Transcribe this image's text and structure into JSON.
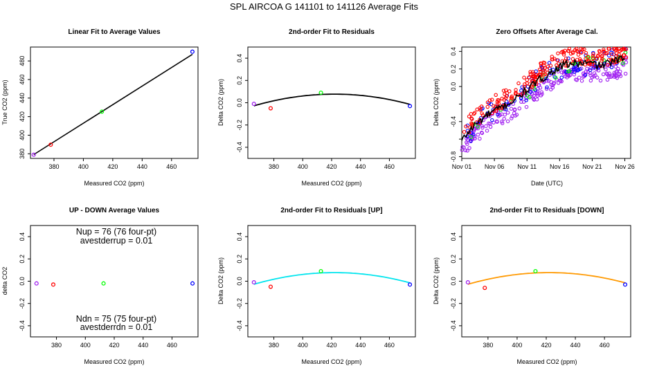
{
  "figure": {
    "title": "SPL   AIRCOA G   141101 to 141126   Average Fits"
  },
  "colors": {
    "purple": "#a020f0",
    "red": "#ff0000",
    "green": "#00ff00",
    "blue": "#0000ff",
    "black": "#000000",
    "cyan": "#00e5ee",
    "orange": "#ff9900"
  },
  "chart_data": [
    {
      "id": "p1",
      "type": "scatter",
      "title": "Linear Fit to Average Values",
      "xlabel": "Measured CO2 (ppm)",
      "ylabel": "True CO2 (ppm)",
      "xlim": [
        364,
        478
      ],
      "ylim": [
        375,
        495
      ],
      "xticks": [
        380,
        400,
        420,
        440,
        460
      ],
      "yticks": [
        380,
        400,
        420,
        440,
        460,
        480
      ],
      "points": [
        {
          "x": 366.2,
          "y": 379.0,
          "color": "purple"
        },
        {
          "x": 377.8,
          "y": 389.8,
          "color": "red"
        },
        {
          "x": 412.6,
          "y": 425.4,
          "color": "green"
        },
        {
          "x": 474.2,
          "y": 490.0,
          "color": "blue"
        }
      ],
      "fit": {
        "kind": "linear",
        "slope": 1.0,
        "intercept": 12.9,
        "range": [
          366.2,
          474.2
        ],
        "color": "black"
      }
    },
    {
      "id": "p2",
      "type": "scatter",
      "title": "2nd-order Fit to Residuals",
      "xlabel": "Measured CO2 (ppm)",
      "ylabel": "Delta CO2 (ppm)",
      "xlim": [
        362,
        478
      ],
      "ylim": [
        -0.5,
        0.5
      ],
      "xticks": [
        380,
        400,
        420,
        440,
        460
      ],
      "yticks": [
        -0.4,
        -0.2,
        0.0,
        0.2,
        0.4
      ],
      "points": [
        {
          "x": 366.2,
          "y": -0.01,
          "color": "purple"
        },
        {
          "x": 377.8,
          "y": -0.05,
          "color": "red"
        },
        {
          "x": 412.6,
          "y": 0.09,
          "color": "green"
        },
        {
          "x": 474.2,
          "y": -0.03,
          "color": "blue"
        }
      ],
      "fit": {
        "kind": "quadratic",
        "a": -3.37e-05,
        "h": 422,
        "k": 0.077,
        "range": [
          366.2,
          474.2
        ],
        "color": "black"
      }
    },
    {
      "id": "p3",
      "type": "scatter",
      "title": "Zero Offsets After Average Cal.",
      "xlabel": "Date (UTC)",
      "ylabel": "Delta CO2 (ppm)",
      "xlim": [
        0,
        25.9
      ],
      "ylim": [
        -0.82,
        0.45
      ],
      "xticks": [
        0,
        5,
        10,
        15,
        20,
        25
      ],
      "xticklabels": [
        "Nov 01",
        "Nov 06",
        "Nov 11",
        "Nov 16",
        "Nov 21",
        "Nov 26"
      ],
      "yticks": [
        -0.8,
        -0.6,
        -0.4,
        -0.2,
        0.0,
        0.2,
        0.4
      ],
      "yticklabels": [
        "-0.8",
        "",
        "-0.4",
        "",
        "0.0",
        "0.2",
        "0.4"
      ],
      "trend": {
        "days": [
          0,
          1,
          2,
          3,
          4,
          5,
          6,
          7,
          8,
          9,
          10,
          11,
          12,
          13,
          14,
          15,
          16,
          17,
          18,
          19,
          20,
          21,
          22,
          23,
          24,
          25
        ],
        "values": [
          -0.62,
          -0.52,
          -0.44,
          -0.38,
          -0.32,
          -0.28,
          -0.24,
          -0.2,
          -0.16,
          -0.1,
          -0.04,
          0.02,
          0.08,
          0.12,
          0.18,
          0.22,
          0.25,
          0.26,
          0.26,
          0.27,
          0.26,
          0.24,
          0.25,
          0.28,
          0.3,
          0.33
        ]
      },
      "series": [
        {
          "name": "red",
          "color": "red",
          "offset": 0.08,
          "spread": 0.1,
          "count": 230
        },
        {
          "name": "blue",
          "color": "blue",
          "offset": 0.0,
          "spread": 0.14,
          "count": 95
        },
        {
          "name": "green",
          "color": "green",
          "offset": -0.02,
          "spread": 0.09,
          "count": 30
        },
        {
          "name": "purple",
          "color": "purple",
          "offset": -0.1,
          "spread": 0.1,
          "count": 230
        }
      ],
      "trend_color": "black"
    },
    {
      "id": "p4",
      "type": "scatter",
      "title": "UP - DOWN Average Values",
      "xlabel": "Measured CO2 (ppm)",
      "ylabel": "delta CO2",
      "xlim": [
        362,
        478
      ],
      "ylim": [
        -0.5,
        0.5
      ],
      "xticks": [
        380,
        400,
        420,
        440,
        460
      ],
      "yticks": [
        -0.4,
        -0.2,
        0.0,
        0.2,
        0.4
      ],
      "points": [
        {
          "x": 366.2,
          "y": -0.02,
          "color": "purple"
        },
        {
          "x": 377.8,
          "y": -0.03,
          "color": "red"
        },
        {
          "x": 412.6,
          "y": -0.02,
          "color": "green"
        },
        {
          "x": 474.2,
          "y": -0.02,
          "color": "blue"
        }
      ]
    },
    {
      "id": "p5",
      "type": "scatter",
      "title": "2nd-order Fit to Residuals [UP]",
      "xlabel": "Measured CO2 (ppm)",
      "ylabel": "Delta CO2 (ppm)",
      "xlim": [
        362,
        478
      ],
      "ylim": [
        -0.5,
        0.5
      ],
      "xticks": [
        380,
        400,
        420,
        440,
        460
      ],
      "yticks": [
        -0.4,
        -0.2,
        0.0,
        0.2,
        0.4
      ],
      "points": [
        {
          "x": 366.2,
          "y": -0.01,
          "color": "purple"
        },
        {
          "x": 377.8,
          "y": -0.05,
          "color": "red"
        },
        {
          "x": 412.6,
          "y": 0.09,
          "color": "green"
        },
        {
          "x": 474.2,
          "y": -0.03,
          "color": "blue"
        }
      ],
      "fit": {
        "kind": "quadratic",
        "a": -3.37e-05,
        "h": 422,
        "k": 0.077,
        "range": [
          366.2,
          474.2
        ],
        "color": "cyan"
      }
    },
    {
      "id": "p6",
      "type": "scatter",
      "title": "2nd-order Fit to Residuals [DOWN]",
      "xlabel": "Measured CO2 (ppm)",
      "ylabel": "Delta CO2 (ppm)",
      "xlim": [
        362,
        478
      ],
      "ylim": [
        -0.5,
        0.5
      ],
      "xticks": [
        380,
        400,
        420,
        440,
        460
      ],
      "yticks": [
        -0.4,
        -0.2,
        0.0,
        0.2,
        0.4
      ],
      "points": [
        {
          "x": 366.2,
          "y": -0.01,
          "color": "purple"
        },
        {
          "x": 377.8,
          "y": -0.06,
          "color": "red"
        },
        {
          "x": 412.6,
          "y": 0.09,
          "color": "green"
        },
        {
          "x": 474.2,
          "y": -0.03,
          "color": "blue"
        }
      ],
      "fit": {
        "kind": "quadratic",
        "a": -3.37e-05,
        "h": 422,
        "k": 0.077,
        "range": [
          366.2,
          474.2
        ],
        "color": "orange"
      }
    }
  ],
  "annotations": {
    "nup": "Nup = 76 (76 four-pt)",
    "avestderr_up": "avestderrup =  0.01",
    "ndn": "Ndn = 75 (75 four-pt)",
    "avestderr_dn": "avestderrdn =  0.01"
  }
}
